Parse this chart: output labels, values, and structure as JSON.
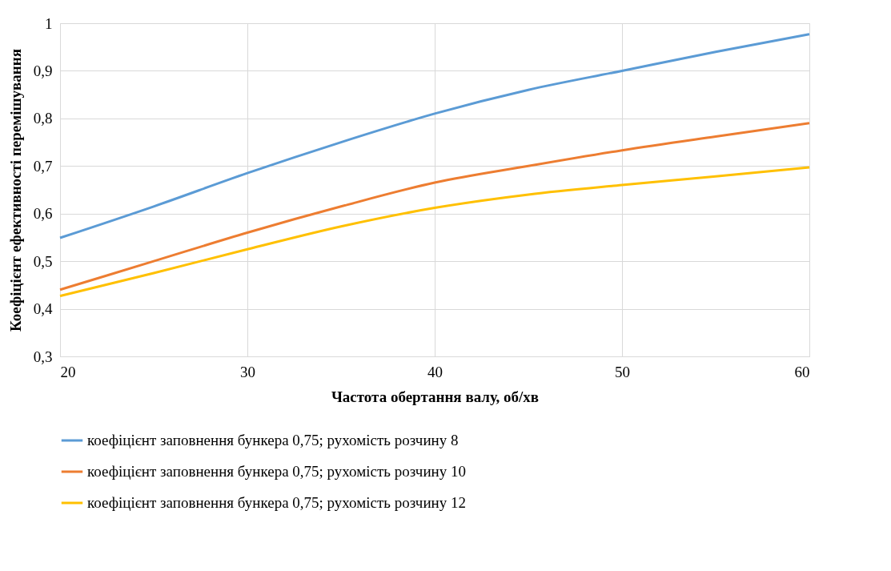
{
  "chart_data": {
    "type": "line",
    "xlabel": "Частота обертання валу, об/хв",
    "ylabel": "Коефіцієнт ефективності перемішування",
    "x": [
      20,
      25,
      30,
      35,
      40,
      45,
      50,
      55,
      60
    ],
    "series": [
      {
        "name": "коефіцієнт заповнення бункера 0,75; рухомість розчину 8",
        "color": "#5b9bd5",
        "values": [
          0.549,
          0.615,
          0.685,
          0.75,
          0.81,
          0.86,
          0.9,
          0.94,
          0.977
        ]
      },
      {
        "name": "коефіцієнт заповнення бункера 0,75; рухомість розчину 10",
        "color": "#ed7d31",
        "values": [
          0.44,
          0.5,
          0.56,
          0.615,
          0.665,
          0.7,
          0.733,
          0.762,
          0.79
        ]
      },
      {
        "name": "коефіцієнт заповнення бункера 0,75; рухомість розчину 12",
        "color": "#ffc000",
        "values": [
          0.427,
          0.475,
          0.525,
          0.573,
          0.612,
          0.64,
          0.66,
          0.678,
          0.697
        ]
      }
    ],
    "xlim": [
      20,
      60
    ],
    "xticks": [
      20,
      30,
      40,
      50,
      60
    ],
    "ylim": [
      0.3,
      1
    ],
    "yticks": [
      {
        "value": 0.3,
        "label": "0,3"
      },
      {
        "value": 0.4,
        "label": "0,4"
      },
      {
        "value": 0.5,
        "label": "0,5"
      },
      {
        "value": 0.6,
        "label": "0,6"
      },
      {
        "value": 0.7,
        "label": "0,7"
      },
      {
        "value": 0.8,
        "label": "0,8"
      },
      {
        "value": 0.9,
        "label": "0,9"
      },
      1
    ],
    "grid": true,
    "legend": "bottom",
    "marker": "none",
    "line_style": "solid"
  }
}
